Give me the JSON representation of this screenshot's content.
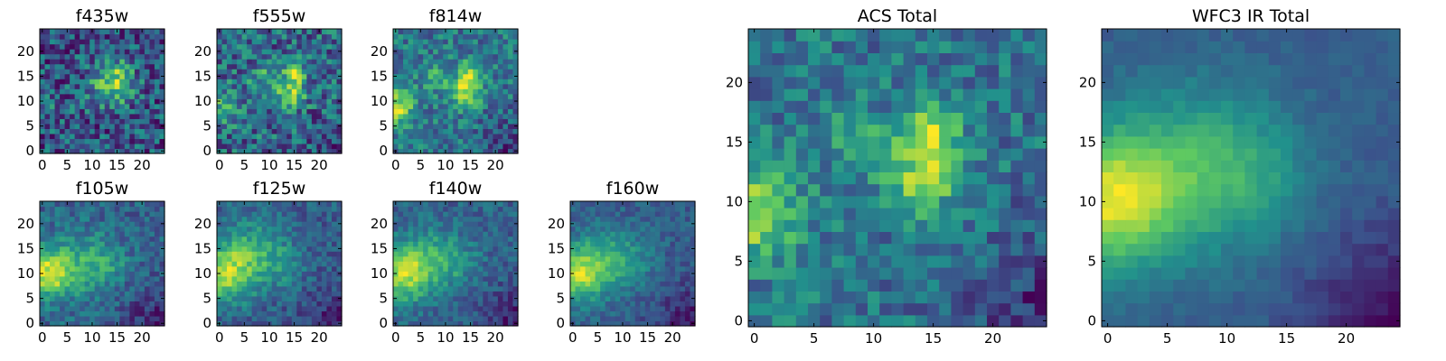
{
  "chart_data": {
    "type": "heatmap",
    "colormap": "viridis",
    "grid_size": 25,
    "colormap_stops": [
      "#440154",
      "#3b528b",
      "#21918c",
      "#5ec962",
      "#fde725"
    ],
    "panels": [
      {
        "id": "f435w",
        "title": "f435w",
        "xlim": [
          0,
          24
        ],
        "ylim": [
          0,
          24
        ],
        "xticks": [
          "0",
          "5",
          "10",
          "15",
          "20"
        ],
        "yticks": [
          "0",
          "5",
          "10",
          "15",
          "20"
        ],
        "noise": 0.55,
        "blobs": [
          [
            14,
            13,
            3.2,
            0.45
          ],
          [
            15,
            16,
            2.0,
            0.2
          ],
          [
            1,
            9,
            2.5,
            0.15
          ]
        ],
        "dark_corner": 0.0
      },
      {
        "id": "f555w",
        "title": "f555w",
        "xlim": [
          0,
          24
        ],
        "ylim": [
          0,
          24
        ],
        "xticks": [
          "0",
          "5",
          "10",
          "15",
          "20"
        ],
        "yticks": [
          "0",
          "5",
          "10",
          "15",
          "20"
        ],
        "noise": 0.45,
        "blobs": [
          [
            14,
            12,
            2.2,
            0.45
          ],
          [
            15,
            16,
            1.6,
            0.3
          ],
          [
            8,
            15,
            1.8,
            0.2
          ],
          [
            1,
            9,
            2.5,
            0.25
          ]
        ],
        "dark_corner": 0.3
      },
      {
        "id": "f814w",
        "title": "f814w",
        "xlim": [
          0,
          24
        ],
        "ylim": [
          0,
          24
        ],
        "xticks": [
          "0",
          "5",
          "10",
          "15",
          "20"
        ],
        "yticks": [
          "0",
          "5",
          "10",
          "15",
          "20"
        ],
        "noise": 0.35,
        "blobs": [
          [
            14,
            12,
            2.2,
            0.45
          ],
          [
            15,
            16,
            1.6,
            0.35
          ],
          [
            8,
            15,
            1.8,
            0.25
          ],
          [
            0,
            9,
            2.6,
            0.45
          ]
        ],
        "dark_corner": 0.6
      },
      {
        "id": "f105w",
        "title": "f105w",
        "xlim": [
          0,
          24
        ],
        "ylim": [
          0,
          24
        ],
        "xticks": [
          "0",
          "5",
          "10",
          "15",
          "20"
        ],
        "yticks": [
          "0",
          "5",
          "10",
          "15",
          "20"
        ],
        "noise": 0.3,
        "blobs": [
          [
            1,
            10,
            3.5,
            0.6
          ],
          [
            8,
            12,
            4.5,
            0.25
          ],
          [
            13,
            12,
            3.0,
            0.15
          ]
        ],
        "dark_corner": 0.7
      },
      {
        "id": "f125w",
        "title": "f125w",
        "xlim": [
          0,
          24
        ],
        "ylim": [
          0,
          24
        ],
        "xticks": [
          "0",
          "5",
          "10",
          "15",
          "20"
        ],
        "yticks": [
          "0",
          "5",
          "10",
          "15",
          "20"
        ],
        "noise": 0.3,
        "blobs": [
          [
            1,
            10,
            4.0,
            0.6
          ],
          [
            6,
            15,
            4.5,
            0.3
          ],
          [
            12,
            12,
            3.5,
            0.2
          ]
        ],
        "dark_corner": 0.7
      },
      {
        "id": "f140w",
        "title": "f140w",
        "xlim": [
          0,
          24
        ],
        "ylim": [
          0,
          24
        ],
        "xticks": [
          "0",
          "5",
          "10",
          "15",
          "20"
        ],
        "yticks": [
          "0",
          "5",
          "10",
          "15",
          "20"
        ],
        "noise": 0.3,
        "blobs": [
          [
            1,
            10,
            3.8,
            0.65
          ],
          [
            7,
            13,
            4.5,
            0.3
          ],
          [
            12,
            12,
            3.5,
            0.15
          ]
        ],
        "dark_corner": 0.8
      },
      {
        "id": "f160w",
        "title": "f160w",
        "xlim": [
          0,
          24
        ],
        "ylim": [
          0,
          24
        ],
        "xticks": [
          "0",
          "5",
          "10",
          "15",
          "20"
        ],
        "yticks": [
          "0",
          "5",
          "10",
          "15",
          "20"
        ],
        "noise": 0.25,
        "blobs": [
          [
            1,
            10,
            3.8,
            0.65
          ],
          [
            7,
            13,
            4.5,
            0.3
          ],
          [
            12,
            12,
            3.5,
            0.15
          ]
        ],
        "dark_corner": 0.85
      },
      {
        "id": "acs-total",
        "title": "ACS Total",
        "xlim": [
          0,
          24
        ],
        "ylim": [
          0,
          24
        ],
        "xticks": [
          "0",
          "5",
          "10",
          "15",
          "20"
        ],
        "yticks": [
          "0",
          "5",
          "10",
          "15",
          "20"
        ],
        "noise": 0.35,
        "blobs": [
          [
            14,
            12,
            2.2,
            0.45
          ],
          [
            15,
            16,
            1.6,
            0.4
          ],
          [
            9,
            15,
            1.8,
            0.3
          ],
          [
            0,
            9,
            2.6,
            0.5
          ]
        ],
        "dark_corner": 0.7
      },
      {
        "id": "wfc3-ir-total",
        "title": "WFC3 IR Total",
        "xlim": [
          0,
          24
        ],
        "ylim": [
          0,
          24
        ],
        "xticks": [
          "0",
          "5",
          "10",
          "15",
          "20"
        ],
        "yticks": [
          "0",
          "5",
          "10",
          "15",
          "20"
        ],
        "noise": 0.12,
        "blobs": [
          [
            0,
            10,
            4.0,
            0.75
          ],
          [
            7,
            13,
            5.0,
            0.35
          ],
          [
            12,
            12,
            4.0,
            0.2
          ]
        ],
        "dark_corner": 0.9
      }
    ]
  }
}
